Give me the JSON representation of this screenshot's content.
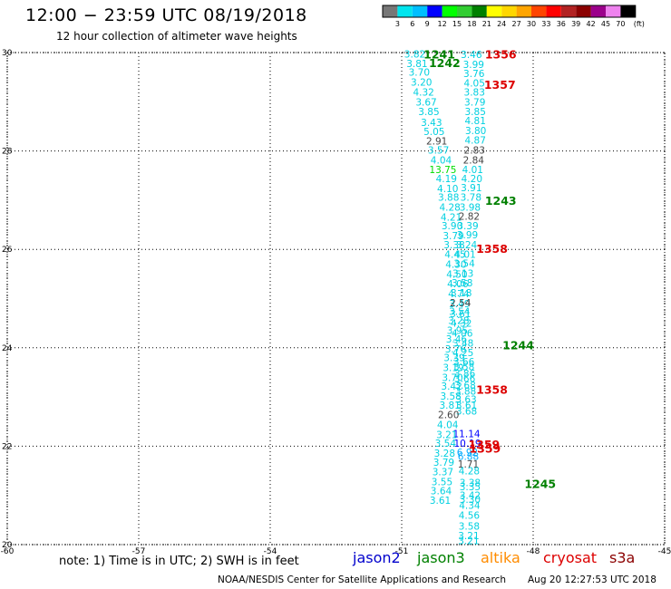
{
  "header": {
    "title": "12:00 − 23:59 UTC 08/19/2018",
    "subtitle": "12 hour collection of altimeter wave heights"
  },
  "footer": {
    "note": "note: 1) Time is in UTC; 2) SWH is in feet",
    "satellites": [
      {
        "name": "jason2",
        "color": "#0000cc"
      },
      {
        "name": "jason3",
        "color": "#008000"
      },
      {
        "name": "altika",
        "color": "#ff8c00"
      },
      {
        "name": "cryosat",
        "color": "#dd0000"
      },
      {
        "name": "s3a",
        "color": "#8b0000"
      }
    ],
    "credit": "NOAA/NESDIS Center for Satellite Applications and Research",
    "timestamp": "Aug 20 12:27:53 UTC 2018"
  },
  "color_scale": {
    "unit": "(ft)",
    "labels": [
      "3",
      "6",
      "9",
      "12",
      "15",
      "18",
      "21",
      "24",
      "27",
      "30",
      "33",
      "36",
      "39",
      "42",
      "45",
      "70"
    ],
    "colors": [
      "#777777",
      "#00e5ee",
      "#00bfff",
      "#0000ff",
      "#00ff00",
      "#32cd32",
      "#008000",
      "#ffff00",
      "#ffd700",
      "#ffa500",
      "#ff4500",
      "#ff0000",
      "#b22222",
      "#8b0000",
      "#9b008b",
      "#ee82ee",
      "#000000"
    ]
  },
  "chart_data": {
    "type": "scatter",
    "title": "12:00 − 23:59 UTC 08/19/2018",
    "subtitle": "12 hour collection of altimeter wave heights",
    "xlabel": "",
    "ylabel": "",
    "xlim": [
      -60,
      -45
    ],
    "ylim": [
      20,
      30
    ],
    "xticks": [
      "-60",
      "-57",
      "-54",
      "-51",
      "-48",
      "-45"
    ],
    "yticks": [
      "20",
      "22",
      "24",
      "26",
      "28",
      "30"
    ],
    "grid": "dotted",
    "series": [
      {
        "name": "track 1242",
        "color": "#00e5ee",
        "points": [
          [
            -50.7,
            29.97,
            "3.82"
          ],
          [
            -50.65,
            29.78,
            "3.81"
          ],
          [
            -50.6,
            29.6,
            "3.70"
          ],
          [
            -50.55,
            29.4,
            "3.20"
          ],
          [
            -50.5,
            29.2,
            "4.32"
          ],
          [
            -50.44,
            29.0,
            "3.67"
          ],
          [
            -50.38,
            28.8,
            "3.85"
          ],
          [
            -50.32,
            28.58,
            "3.43"
          ],
          [
            -50.26,
            28.4,
            "5.05"
          ],
          [
            -50.2,
            28.2,
            "2.91"
          ],
          [
            -50.16,
            28.02,
            "3.57"
          ],
          [
            -50.1,
            27.82,
            "4.04"
          ],
          [
            -50.06,
            27.62,
            "13.75"
          ],
          [
            -49.98,
            27.44,
            "4.19"
          ],
          [
            -49.95,
            27.24,
            "4.10"
          ],
          [
            -49.93,
            27.06,
            "3.88"
          ],
          [
            -49.9,
            26.86,
            "4.28"
          ],
          [
            -49.87,
            26.66,
            "4.21"
          ],
          [
            -49.85,
            26.48,
            "3.90"
          ],
          [
            -49.82,
            26.28,
            "3.79"
          ],
          [
            -49.8,
            26.1,
            "3.38"
          ],
          [
            -49.78,
            25.9,
            "4.45"
          ],
          [
            -49.76,
            25.7,
            "4.30"
          ],
          [
            -49.74,
            25.5,
            "4.50"
          ],
          [
            -49.72,
            25.3,
            "4.06"
          ],
          [
            -49.7,
            25.1,
            "4.74"
          ],
          [
            -49.68,
            24.9,
            "3.49"
          ],
          [
            -49.66,
            24.7,
            "3.61"
          ],
          [
            -49.64,
            24.5,
            "4.32"
          ],
          [
            -49.62,
            24.3,
            "4.06"
          ],
          [
            -49.6,
            24.1,
            "3.48"
          ],
          [
            -49.6,
            23.9,
            "4.25"
          ],
          [
            -49.58,
            23.72,
            "3.66"
          ],
          [
            -49.58,
            23.62,
            "3.58"
          ],
          [
            -49.56,
            23.48,
            "3.86"
          ],
          [
            -49.56,
            23.38,
            "3.66"
          ],
          [
            -49.55,
            23.24,
            "3.68"
          ],
          [
            -49.54,
            23.12,
            "3.88"
          ],
          [
            -49.53,
            22.96,
            "3.63"
          ],
          [
            -49.52,
            22.84,
            "3.61"
          ],
          [
            -49.52,
            22.72,
            "3.68"
          ],
          [
            -49.52,
            22.26,
            "11.14"
          ],
          [
            -49.5,
            22.06,
            "10.19"
          ],
          [
            -49.5,
            21.88,
            "6.92"
          ],
          [
            -49.48,
            21.8,
            "6.88"
          ],
          [
            -49.48,
            21.64,
            "1.71"
          ],
          [
            -49.46,
            21.5,
            "4.28"
          ],
          [
            -49.44,
            21.26,
            "3.38"
          ],
          [
            -49.44,
            21.18,
            "3.35"
          ],
          [
            -49.44,
            21.0,
            "3.42"
          ],
          [
            -49.44,
            20.92,
            "3.30"
          ],
          [
            -49.45,
            20.8,
            "4.34"
          ],
          [
            -49.46,
            20.6,
            "4.56"
          ],
          [
            -49.46,
            20.38,
            "3.58"
          ],
          [
            -49.47,
            20.18,
            "3.21"
          ],
          [
            -49.47,
            20.08,
            "3.21"
          ]
        ]
      },
      {
        "name": "track 1356",
        "color": "#00e5ee",
        "points": [
          [
            -49.41,
            29.96,
            "3.46"
          ],
          [
            -49.36,
            29.76,
            "3.99"
          ],
          [
            -49.35,
            29.58,
            "3.76"
          ],
          [
            -49.34,
            29.38,
            "4.05"
          ],
          [
            -49.34,
            29.2,
            "3.83"
          ],
          [
            -49.33,
            29.0,
            "3.79"
          ],
          [
            -49.32,
            28.8,
            "3.85"
          ],
          [
            -49.32,
            28.62,
            "4.81"
          ],
          [
            -49.31,
            28.42,
            "3.80"
          ],
          [
            -49.32,
            28.22,
            "4.87"
          ],
          [
            -49.34,
            28.02,
            "2.83"
          ],
          [
            -49.36,
            27.82,
            "2.84"
          ],
          [
            -49.38,
            27.62,
            "4.01"
          ],
          [
            -49.4,
            27.44,
            "4.20"
          ],
          [
            -49.41,
            27.26,
            "3.91"
          ],
          [
            -49.42,
            27.06,
            "3.78"
          ],
          [
            -49.44,
            26.86,
            "3.98"
          ],
          [
            -49.46,
            26.68,
            "2.82"
          ],
          [
            -49.49,
            26.48,
            "3.39"
          ],
          [
            -49.5,
            26.3,
            "3.99"
          ],
          [
            -49.52,
            26.1,
            "3.24"
          ],
          [
            -49.55,
            25.9,
            "4.01"
          ],
          [
            -49.57,
            25.72,
            "3.54"
          ],
          [
            -49.6,
            25.52,
            "3.13"
          ],
          [
            -49.62,
            25.32,
            "3.58"
          ],
          [
            -49.64,
            25.12,
            "3.18"
          ],
          [
            -49.66,
            24.92,
            "2.54"
          ],
          [
            -49.68,
            24.74,
            "3.54"
          ],
          [
            -49.7,
            24.56,
            "3.28"
          ],
          [
            -49.73,
            24.36,
            "3.95"
          ],
          [
            -49.75,
            24.18,
            "3.46"
          ],
          [
            -49.77,
            23.98,
            "3.76"
          ],
          [
            -49.8,
            23.8,
            "3.39"
          ],
          [
            -49.82,
            23.6,
            "3.19"
          ],
          [
            -49.84,
            23.4,
            "3.70"
          ],
          [
            -49.86,
            23.22,
            "3.42"
          ],
          [
            -49.88,
            23.02,
            "3.58"
          ],
          [
            -49.9,
            22.84,
            "3.81"
          ],
          [
            -49.93,
            22.64,
            "2.60"
          ],
          [
            -49.95,
            22.44,
            "4.04"
          ],
          [
            -49.97,
            22.24,
            "3.21"
          ],
          [
            -50.0,
            22.06,
            "3.54"
          ],
          [
            -50.02,
            21.86,
            "3.28"
          ],
          [
            -50.04,
            21.68,
            "3.79"
          ],
          [
            -50.06,
            21.48,
            "3.37"
          ],
          [
            -50.08,
            21.28,
            "3.55"
          ],
          [
            -50.1,
            21.1,
            "3.64"
          ],
          [
            -50.12,
            20.9,
            "3.61"
          ]
        ]
      }
    ],
    "annotations": [
      {
        "text": "1241",
        "x": -50.5,
        "y": 29.97,
        "color": "#008000"
      },
      {
        "text": "1242",
        "x": -50.38,
        "y": 29.8,
        "color": "#008000"
      },
      {
        "text": "1356",
        "x": -49.1,
        "y": 29.97,
        "color": "#dd0000"
      },
      {
        "text": "1357",
        "x": -49.12,
        "y": 29.36,
        "color": "#dd0000"
      },
      {
        "text": "1243",
        "x": -49.1,
        "y": 27.0,
        "color": "#008000"
      },
      {
        "text": "1358",
        "x": -49.3,
        "y": 26.02,
        "color": "#dd0000"
      },
      {
        "text": "1244",
        "x": -48.7,
        "y": 24.06,
        "color": "#008000"
      },
      {
        "text": "1358",
        "x": -49.3,
        "y": 23.16,
        "color": "#dd0000"
      },
      {
        "text": "1359",
        "x": -49.48,
        "y": 22.04,
        "color": "#dd0000"
      },
      {
        "text": "1359",
        "x": -49.46,
        "y": 21.96,
        "color": "#dd0000"
      },
      {
        "text": "1245",
        "x": -48.2,
        "y": 21.24,
        "color": "#008000"
      }
    ]
  }
}
